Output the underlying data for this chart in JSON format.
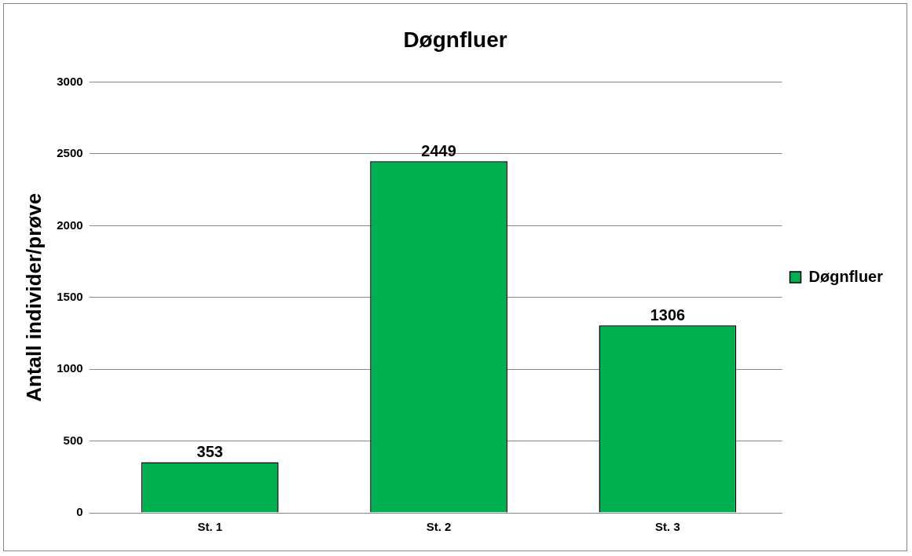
{
  "chart_data": {
    "type": "bar",
    "title": "Døgnfluer",
    "ylabel": "Antall individer/prøve",
    "categories": [
      "St. 1",
      "St. 2",
      "St. 3"
    ],
    "series": [
      {
        "name": "Døgnfluer",
        "color": "#00b050",
        "values": [
          353,
          2449,
          1306
        ]
      }
    ],
    "ylim": [
      0,
      3000
    ],
    "yticks": [
      0,
      500,
      1000,
      1500,
      2000,
      2500,
      3000
    ],
    "grid": "y",
    "legend": "right",
    "data_labels": true
  }
}
